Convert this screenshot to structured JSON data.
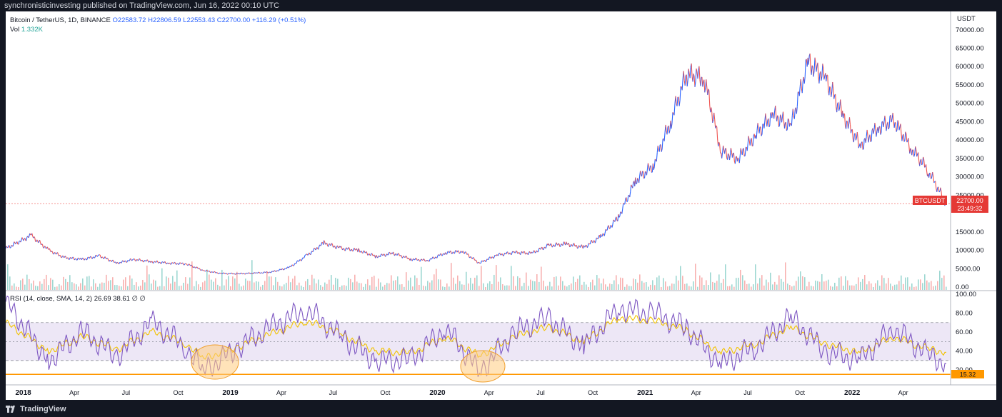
{
  "header": {
    "publisher_line": "synchronisticinvesting published on TradingView.com, Jun 16, 2022 00:10 UTC"
  },
  "footer": {
    "brand": "TradingView"
  },
  "legend": {
    "symbol": "Bitcoin / TetherUS, 1D, BINANCE",
    "open": "O22583.72",
    "high": "H22806.59",
    "low": "L22553.43",
    "close": "C22700.00",
    "change": "+116.29 (+0.51%)",
    "vol_label": "Vol",
    "vol_value": "1.332K"
  },
  "rsi_legend": {
    "label": "RSI (14, close, SMA, 14, 2)",
    "rsi_value": "26.69",
    "sma_value": "38.61",
    "extra1": "∅",
    "extra2": "∅"
  },
  "price_axis": {
    "currency": "USDT",
    "ticks": [
      "70000.00",
      "65000.00",
      "60000.00",
      "55000.00",
      "50000.00",
      "45000.00",
      "40000.00",
      "35000.00",
      "30000.00",
      "25000.00",
      "15000.00",
      "10000.00",
      "5000.00",
      "0.00"
    ],
    "tag_symbol": "BTCUSDT",
    "tag_price": "22700.00",
    "tag_countdown": "23:49:32"
  },
  "rsi_axis": {
    "ticks": [
      "100.00",
      "80.00",
      "60.00",
      "40.00",
      "20.00"
    ],
    "tag_value": "15.32"
  },
  "time_axis": {
    "labels": [
      "2018",
      "Apr",
      "Jul",
      "Oct",
      "2019",
      "Apr",
      "Jul",
      "Oct",
      "2020",
      "Apr",
      "Jul",
      "Oct",
      "2021",
      "Apr",
      "Jul",
      "Oct",
      "2022",
      "Apr"
    ]
  },
  "colors": {
    "price_up": "#2962ff",
    "price_down": "#ef5350",
    "vol_up": "#26a69a",
    "vol_down": "#ef5350",
    "rsi_line": "#7e57c2",
    "rsi_sma": "#f2c200",
    "rsi_band": "#ede7f6",
    "support_line": "#ff9800",
    "tag_red": "#e53935",
    "highlight_circle": "#ffcc80"
  },
  "chart_data": [
    {
      "type": "line",
      "title": "Bitcoin / TetherUS, 1D, BINANCE",
      "ylabel": "USDT",
      "ylim": [
        0,
        72000
      ],
      "x": [
        "2017-12",
        "2018-01",
        "2018-02",
        "2018-03",
        "2018-04",
        "2018-05",
        "2018-06",
        "2018-07",
        "2018-08",
        "2018-09",
        "2018-10",
        "2018-11",
        "2018-12",
        "2019-01",
        "2019-02",
        "2019-03",
        "2019-04",
        "2019-05",
        "2019-06",
        "2019-07",
        "2019-08",
        "2019-09",
        "2019-10",
        "2019-11",
        "2019-12",
        "2020-01",
        "2020-02",
        "2020-03",
        "2020-04",
        "2020-05",
        "2020-06",
        "2020-07",
        "2020-08",
        "2020-09",
        "2020-10",
        "2020-11",
        "2020-12",
        "2021-01",
        "2021-02",
        "2021-03",
        "2021-04",
        "2021-05",
        "2021-06",
        "2021-07",
        "2021-08",
        "2021-09",
        "2021-10",
        "2021-11",
        "2021-12",
        "2022-01",
        "2022-02",
        "2022-03",
        "2022-04",
        "2022-05",
        "2022-06"
      ],
      "series": [
        {
          "values": [
            10500,
            14000,
            10000,
            8000,
            7500,
            8500,
            6500,
            7500,
            6900,
            6500,
            6300,
            4500,
            3700,
            3600,
            3800,
            4100,
            5300,
            8500,
            12000,
            10500,
            10000,
            8300,
            9200,
            7600,
            7200,
            9300,
            9700,
            6500,
            8700,
            9400,
            9200,
            11300,
            11700,
            10800,
            13700,
            19000,
            28900,
            33000,
            45000,
            58000,
            57000,
            37000,
            35000,
            41500,
            47000,
            43800,
            61300,
            57000,
            47000,
            38500,
            43200,
            45500,
            38000,
            31800,
            22700
          ]
        }
      ]
    },
    {
      "type": "line",
      "title": "RSI (14, close, SMA, 14, 2)",
      "ylim": [
        10,
        100
      ],
      "x": [
        "2017-12",
        "2018-02",
        "2018-04",
        "2018-06",
        "2018-08",
        "2018-10",
        "2018-11",
        "2019-01",
        "2019-03",
        "2019-05",
        "2019-07",
        "2019-09",
        "2019-11",
        "2020-01",
        "2020-03",
        "2020-05",
        "2020-07",
        "2020-09",
        "2020-11",
        "2021-01",
        "2021-03",
        "2021-05",
        "2021-07",
        "2021-09",
        "2021-11",
        "2022-01",
        "2022-03",
        "2022-05",
        "2022-06"
      ],
      "series": [
        {
          "values": [
            92,
            30,
            60,
            35,
            70,
            45,
            18,
            45,
            65,
            85,
            55,
            30,
            30,
            65,
            18,
            60,
            75,
            45,
            85,
            80,
            65,
            25,
            45,
            75,
            40,
            30,
            65,
            35,
            26.69
          ]
        },
        {
          "values": [
            70,
            40,
            55,
            42,
            60,
            48,
            32,
            45,
            58,
            72,
            58,
            40,
            38,
            55,
            35,
            55,
            65,
            50,
            75,
            72,
            62,
            38,
            48,
            65,
            48,
            38,
            55,
            42,
            38.61
          ]
        }
      ],
      "reference_lines": [
        70,
        50,
        30,
        15.32
      ]
    }
  ]
}
